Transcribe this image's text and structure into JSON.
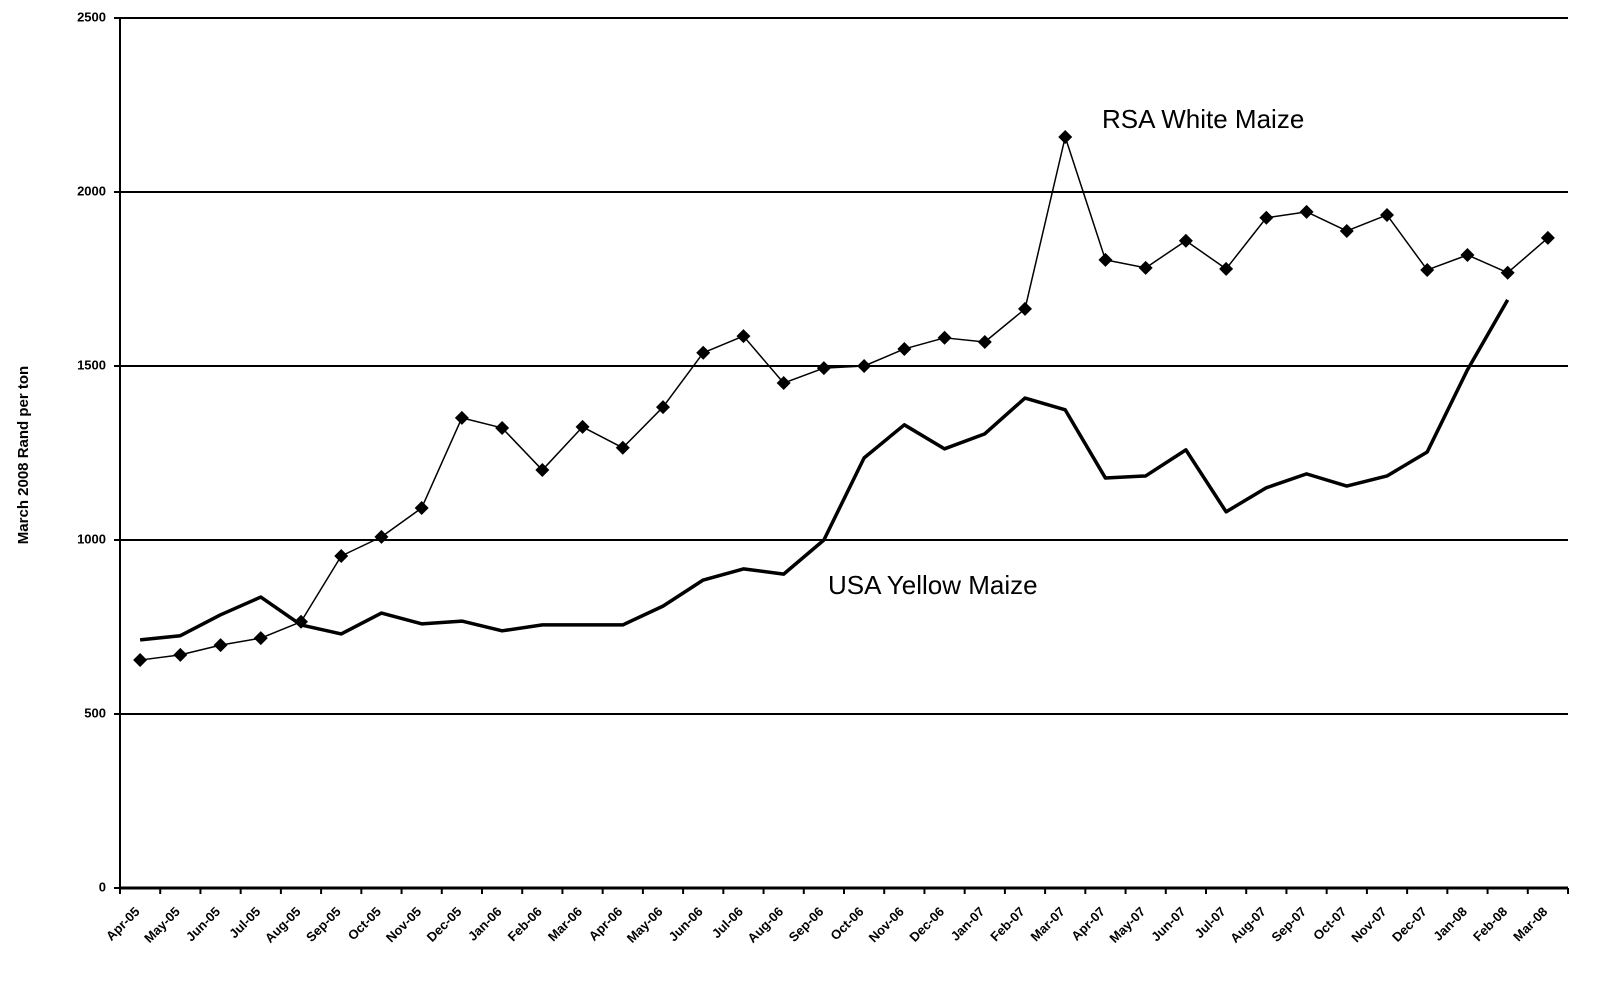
{
  "chart_data": {
    "type": "line",
    "y_label": "March 2008 Rand per ton",
    "categories": [
      "Apr-05",
      "May-05",
      "Jun-05",
      "Jul-05",
      "Aug-05",
      "Sep-05",
      "Oct-05",
      "Nov-05",
      "Dec-05",
      "Jan-06",
      "Feb-06",
      "Mar-06",
      "Apr-06",
      "May-06",
      "Jun-06",
      "Jul-06",
      "Aug-06",
      "Sep-06",
      "Oct-06",
      "Nov-06",
      "Dec-06",
      "Jan-07",
      "Feb-07",
      "Mar-07",
      "Apr-07",
      "May-07",
      "Jun-07",
      "Jul-07",
      "Aug-07",
      "Sep-07",
      "Oct-07",
      "Nov-07",
      "Dec-07",
      "Jan-08",
      "Feb-08",
      "Mar-08"
    ],
    "series": [
      {
        "name": "RSA White Maize",
        "color": "#000000",
        "marker": "diamond",
        "values": [
          655,
          670,
          698,
          718,
          765,
          954,
          1009,
          1092,
          1351,
          1322,
          1201,
          1325,
          1265,
          1382,
          1538,
          1586,
          1451,
          1494,
          1500,
          1549,
          1581,
          1569,
          1664,
          2158,
          1805,
          1782,
          1860,
          1779,
          1926,
          1943,
          1888,
          1934,
          1776,
          1819,
          1768,
          1868
        ]
      },
      {
        "name": "USA Yellow Maize",
        "color": "#000000",
        "values": [
          713,
          725,
          785,
          836,
          756,
          730,
          790,
          759,
          767,
          739,
          756,
          756,
          756,
          810,
          885,
          917,
          902,
          1000,
          1236,
          1331,
          1262,
          1305,
          1408,
          1374,
          1178,
          1184,
          1259,
          1081,
          1150,
          1190,
          1155,
          1184,
          1253,
          1489,
          1690,
          null
        ]
      }
    ],
    "ylim": [
      0,
      2500
    ],
    "yticks": [
      0,
      500,
      1000,
      1500,
      2000,
      2500
    ],
    "grid": true
  }
}
